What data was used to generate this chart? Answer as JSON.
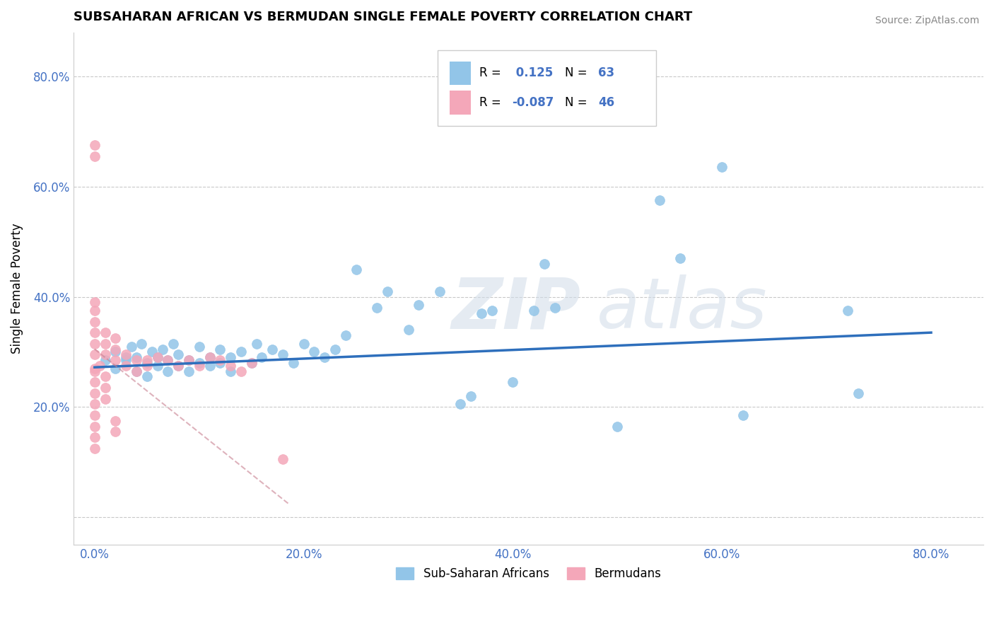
{
  "title": "SUBSAHARAN AFRICAN VS BERMUDAN SINGLE FEMALE POVERTY CORRELATION CHART",
  "source": "Source: ZipAtlas.com",
  "ylabel": "Single Female Poverty",
  "yticks": [
    0.0,
    0.2,
    0.4,
    0.6,
    0.8
  ],
  "ytick_labels": [
    "",
    "20.0%",
    "40.0%",
    "60.0%",
    "80.0%"
  ],
  "xticks": [
    0.0,
    0.2,
    0.4,
    0.6,
    0.8
  ],
  "xtick_labels": [
    "0.0%",
    "20.0%",
    "40.0%",
    "60.0%",
    "80.0%"
  ],
  "xlim": [
    -0.02,
    0.85
  ],
  "ylim": [
    -0.05,
    0.88
  ],
  "blue_R": "0.125",
  "blue_N": "63",
  "pink_R": "-0.087",
  "pink_N": "46",
  "blue_color": "#92C5E8",
  "pink_color": "#F4A7B9",
  "blue_line_color": "#2E6FBC",
  "pink_line_color": "#C88090",
  "legend_label_blue": "Sub-Saharan Africans",
  "legend_label_pink": "Bermudans",
  "blue_line_x": [
    0.0,
    0.8
  ],
  "blue_line_y": [
    0.272,
    0.335
  ],
  "pink_line_x": [
    0.0,
    0.185
  ],
  "pink_line_y": [
    0.305,
    0.025
  ],
  "blue_scatter_x": [
    0.01,
    0.02,
    0.02,
    0.03,
    0.03,
    0.035,
    0.04,
    0.04,
    0.045,
    0.05,
    0.05,
    0.055,
    0.06,
    0.06,
    0.065,
    0.07,
    0.07,
    0.075,
    0.08,
    0.08,
    0.09,
    0.09,
    0.1,
    0.1,
    0.11,
    0.11,
    0.12,
    0.12,
    0.13,
    0.13,
    0.14,
    0.15,
    0.155,
    0.16,
    0.17,
    0.18,
    0.19,
    0.2,
    0.21,
    0.22,
    0.23,
    0.24,
    0.25,
    0.27,
    0.28,
    0.3,
    0.31,
    0.33,
    0.35,
    0.36,
    0.37,
    0.38,
    0.4,
    0.42,
    0.43,
    0.44,
    0.5,
    0.54,
    0.56,
    0.6,
    0.62,
    0.72,
    0.73
  ],
  "blue_scatter_y": [
    0.285,
    0.27,
    0.3,
    0.29,
    0.285,
    0.31,
    0.265,
    0.29,
    0.315,
    0.255,
    0.28,
    0.3,
    0.275,
    0.29,
    0.305,
    0.265,
    0.285,
    0.315,
    0.275,
    0.295,
    0.265,
    0.285,
    0.28,
    0.31,
    0.275,
    0.29,
    0.28,
    0.305,
    0.265,
    0.29,
    0.3,
    0.28,
    0.315,
    0.29,
    0.305,
    0.295,
    0.28,
    0.315,
    0.3,
    0.29,
    0.305,
    0.33,
    0.45,
    0.38,
    0.41,
    0.34,
    0.385,
    0.41,
    0.205,
    0.22,
    0.37,
    0.375,
    0.245,
    0.375,
    0.46,
    0.38,
    0.165,
    0.575,
    0.47,
    0.635,
    0.185,
    0.375,
    0.225
  ],
  "pink_scatter_x": [
    0.0,
    0.0,
    0.0,
    0.0,
    0.0,
    0.0,
    0.0,
    0.0,
    0.0,
    0.0,
    0.0,
    0.0,
    0.0,
    0.0,
    0.0,
    0.0,
    0.0,
    0.005,
    0.01,
    0.01,
    0.01,
    0.01,
    0.01,
    0.01,
    0.02,
    0.02,
    0.02,
    0.02,
    0.02,
    0.03,
    0.03,
    0.04,
    0.04,
    0.05,
    0.05,
    0.06,
    0.07,
    0.08,
    0.09,
    0.1,
    0.11,
    0.12,
    0.13,
    0.14,
    0.15,
    0.18
  ],
  "pink_scatter_y": [
    0.27,
    0.295,
    0.315,
    0.335,
    0.355,
    0.375,
    0.39,
    0.165,
    0.185,
    0.205,
    0.225,
    0.245,
    0.265,
    0.655,
    0.675,
    0.125,
    0.145,
    0.275,
    0.295,
    0.315,
    0.335,
    0.255,
    0.235,
    0.215,
    0.285,
    0.305,
    0.325,
    0.175,
    0.155,
    0.295,
    0.275,
    0.285,
    0.265,
    0.285,
    0.275,
    0.29,
    0.285,
    0.275,
    0.285,
    0.275,
    0.29,
    0.285,
    0.275,
    0.265,
    0.28,
    0.105
  ]
}
